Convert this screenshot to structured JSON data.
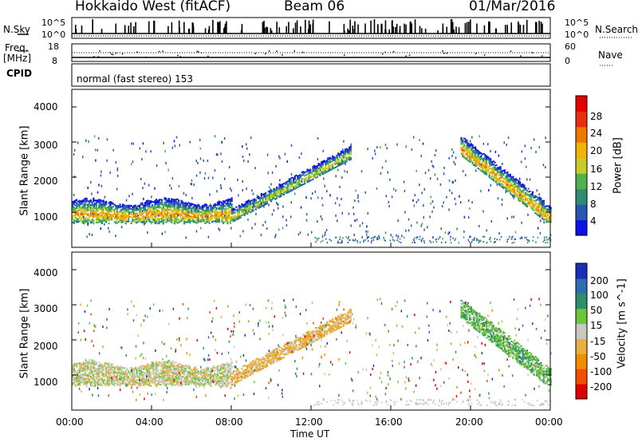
{
  "header": {
    "station": "Hokkaido West (fitACF)",
    "beam": "Beam 06",
    "date": "01/Mar/2016"
  },
  "noise_panel": {
    "left_label": "N.Sky",
    "right_label": "N.Search",
    "left_ticks": [
      "10^5",
      "10^0"
    ],
    "right_ticks": [
      "10^5",
      "10^0"
    ]
  },
  "freq_panel": {
    "left_label_1": "Freq.",
    "left_label_2": "[MHz]",
    "left_ticks": [
      "18",
      "8"
    ],
    "right_label": "Nave",
    "right_ticks": [
      "60",
      "0"
    ]
  },
  "cpid_panel": {
    "label": "CPID",
    "text": "normal (fast stereo) 153"
  },
  "power_panel": {
    "ylabel": "Slant Range [km]",
    "yticks": [
      "4000",
      "3000",
      "2000",
      "1000"
    ],
    "colorbar_label": "Power [dB]",
    "colorbar_ticks": [
      "28",
      "24",
      "20",
      "16",
      "12",
      "8",
      "4"
    ],
    "colors": [
      "#0a14e6",
      "#2a55b0",
      "#2e8c70",
      "#4fb24f",
      "#c8cc2a",
      "#f2b400",
      "#f07800",
      "#e83010",
      "#e60000"
    ]
  },
  "velocity_panel": {
    "ylabel": "Slant Range [km]",
    "yticks": [
      "4000",
      "3000",
      "2000",
      "1000"
    ],
    "colorbar_label": "Velocity [m s^-1]",
    "colorbar_ticks": [
      "200",
      "100",
      "50",
      "15",
      "-15",
      "-50",
      "-100",
      "-200"
    ],
    "colors": [
      "#1a2fb8",
      "#2e6eb0",
      "#2c8f6a",
      "#6cc63c",
      "#c8c8c0",
      "#e8b040",
      "#f08c00",
      "#f05000",
      "#e00000"
    ]
  },
  "xaxis": {
    "ticks": [
      "00:00",
      "04:00",
      "08:00",
      "12:00",
      "16:00",
      "20:00",
      "00:00"
    ],
    "label": "Time UT"
  },
  "chart_data": {
    "type": "heatmap",
    "title": "Hokkaido West (fitACF)",
    "x_range_hours": [
      0,
      24
    ],
    "y_range_km": [
      0,
      4500
    ],
    "panels": [
      {
        "name": "Power",
        "unit": "dB",
        "color_range": [
          3,
          30
        ],
        "bands": [
          {
            "t_start": 0,
            "t_end": 8,
            "range_low_km": 700,
            "range_high_km": 1350,
            "peak_db": 22
          },
          {
            "t_start": 8,
            "t_end": 14,
            "range_low_km": 1000,
            "range_high_km": 2700,
            "peak_db": 18
          },
          {
            "t_start": 19.5,
            "t_end": 24,
            "range_low_km": 700,
            "range_high_km": 3000,
            "peak_db": 22
          }
        ]
      },
      {
        "name": "Velocity",
        "unit": "m s^-1",
        "color_range": [
          -200,
          200
        ],
        "bands": [
          {
            "t_start": 0,
            "t_end": 8,
            "range_low_km": 700,
            "range_high_km": 1350,
            "typical_velocity": 0
          },
          {
            "t_start": 8,
            "t_end": 14,
            "range_low_km": 1000,
            "range_high_km": 2700,
            "typical_velocity": -30
          },
          {
            "t_start": 19.5,
            "t_end": 24,
            "range_low_km": 700,
            "range_high_km": 3000,
            "typical_velocity": 40
          }
        ]
      }
    ]
  }
}
